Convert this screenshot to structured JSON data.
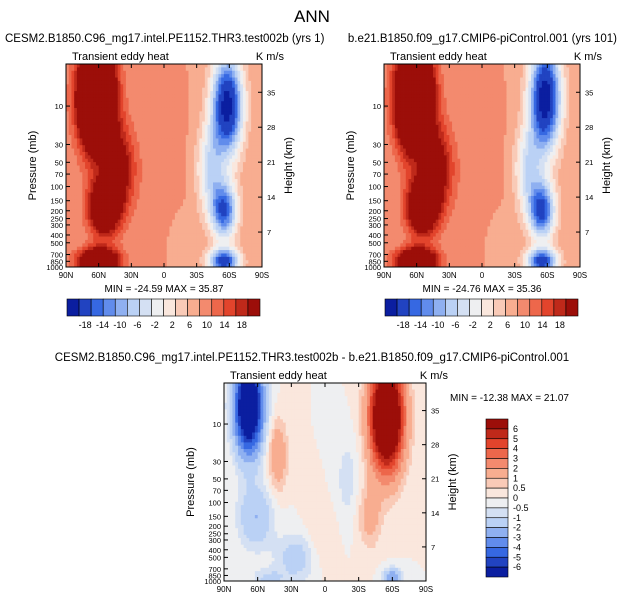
{
  "figure": {
    "title": "ANN",
    "colors": {
      "red_dark": "#8b0000",
      "red": "#e8492f",
      "red_light": "#f8a88a",
      "neutral": "#fbf6f0",
      "blue_light": "#b6cef5",
      "blue": "#3a6ee8",
      "blue_dark": "#000c8f"
    }
  },
  "chart_data": [
    {
      "type": "heatmap",
      "id": "left",
      "case_title": "CESM2.B1850.C96_mg17.intel.PE1152.THR3.test002b (yrs 1)",
      "variable": "Transient eddy heat",
      "units": "K m/s",
      "xlabel": "",
      "ylabel": "Pressure (mb)",
      "ylabel_right": "Height (km)",
      "x_ticks": [
        "90N",
        "60N",
        "30N",
        "0",
        "30S",
        "60S",
        "90S"
      ],
      "x_values": [
        90,
        60,
        30,
        0,
        -30,
        -60,
        -90
      ],
      "pressure_ticks": [
        "10",
        "30",
        "50",
        "70",
        "100",
        "150",
        "200",
        "250",
        "300",
        "400",
        "500",
        "700",
        "850",
        "1000"
      ],
      "pressure_values": [
        10,
        30,
        50,
        70,
        100,
        150,
        200,
        250,
        300,
        400,
        500,
        700,
        850,
        1000
      ],
      "ylim_mb": [
        3,
        1000
      ],
      "height_ticks": [
        "7",
        "14",
        "21",
        "28",
        "35"
      ],
      "height_values": [
        7,
        14,
        21,
        28,
        35
      ],
      "min_max_label": "MIN = -24.59   MAX = 35.87",
      "min": -24.59,
      "max": 35.87,
      "features": [
        {
          "lat": 62,
          "p": 8,
          "value": 35,
          "spread_lat": 16,
          "spread_p": 1.4
        },
        {
          "lat": 55,
          "p": 180,
          "value": 18,
          "spread_lat": 14,
          "spread_p": 0.8
        },
        {
          "lat": 60,
          "p": 850,
          "value": 22,
          "spread_lat": 18,
          "spread_p": 0.35
        },
        {
          "lat": 40,
          "p": 60,
          "value": 10,
          "spread_lat": 14,
          "spread_p": 1.2
        },
        {
          "lat": -58,
          "p": 10,
          "value": -24,
          "spread_lat": 14,
          "spread_p": 1.4
        },
        {
          "lat": -55,
          "p": 200,
          "value": -18,
          "spread_lat": 12,
          "spread_p": 0.8
        },
        {
          "lat": -55,
          "p": 850,
          "value": -20,
          "spread_lat": 14,
          "spread_p": 0.35
        },
        {
          "lat": -42,
          "p": 60,
          "value": -9,
          "spread_lat": 12,
          "spread_p": 1.2
        },
        {
          "lat": 0,
          "p": 100,
          "value": 2,
          "spread_lat": 18,
          "spread_p": 1.8
        },
        {
          "lat": -15,
          "p": 400,
          "value": -2,
          "spread_lat": 14,
          "spread_p": 0.9
        }
      ]
    },
    {
      "type": "heatmap",
      "id": "right",
      "case_title": "b.e21.B1850.f09_g17.CMIP6-piControl.001 (yrs 101)",
      "variable": "Transient eddy heat",
      "units": "K m/s",
      "xlabel": "",
      "ylabel": "Pressure (mb)",
      "ylabel_right": "Height (km)",
      "x_ticks": [
        "90N",
        "60N",
        "30N",
        "0",
        "30S",
        "60S",
        "90S"
      ],
      "x_values": [
        90,
        60,
        30,
        0,
        -30,
        -60,
        -90
      ],
      "pressure_ticks": [
        "10",
        "30",
        "50",
        "70",
        "100",
        "150",
        "200",
        "250",
        "300",
        "400",
        "500",
        "700",
        "850",
        "1000"
      ],
      "pressure_values": [
        10,
        30,
        50,
        70,
        100,
        150,
        200,
        250,
        300,
        400,
        500,
        700,
        850,
        1000
      ],
      "ylim_mb": [
        3,
        1000
      ],
      "height_ticks": [
        "7",
        "14",
        "21",
        "28",
        "35"
      ],
      "height_values": [
        7,
        14,
        21,
        28,
        35
      ],
      "min_max_label": "MIN = -24.76   MAX = 35.36",
      "min": -24.76,
      "max": 35.36,
      "features": [
        {
          "lat": 62,
          "p": 8,
          "value": 34,
          "spread_lat": 16,
          "spread_p": 1.4
        },
        {
          "lat": 55,
          "p": 180,
          "value": 18,
          "spread_lat": 14,
          "spread_p": 0.8
        },
        {
          "lat": 60,
          "p": 850,
          "value": 22,
          "spread_lat": 18,
          "spread_p": 0.35
        },
        {
          "lat": 40,
          "p": 60,
          "value": 10,
          "spread_lat": 14,
          "spread_p": 1.2
        },
        {
          "lat": -58,
          "p": 8,
          "value": -25,
          "spread_lat": 14,
          "spread_p": 1.5
        },
        {
          "lat": -55,
          "p": 200,
          "value": -19,
          "spread_lat": 12,
          "spread_p": 0.8
        },
        {
          "lat": -55,
          "p": 850,
          "value": -20,
          "spread_lat": 14,
          "spread_p": 0.35
        },
        {
          "lat": -42,
          "p": 60,
          "value": -9,
          "spread_lat": 12,
          "spread_p": 1.2
        },
        {
          "lat": 0,
          "p": 100,
          "value": 2,
          "spread_lat": 18,
          "spread_p": 1.8
        },
        {
          "lat": -15,
          "p": 400,
          "value": -2,
          "spread_lat": 14,
          "spread_p": 0.9
        }
      ]
    },
    {
      "type": "heatmap",
      "id": "diff",
      "case_title": "CESM2.B1850.C96_mg17.intel.PE1152.THR3.test002b - b.e21.B1850.f09_g17.CMIP6-piControl.001",
      "variable": "Transient eddy heat",
      "units": "K m/s",
      "xlabel": "",
      "ylabel": "Pressure (mb)",
      "ylabel_right": "Height (km)",
      "x_ticks": [
        "90N",
        "60N",
        "30N",
        "0",
        "30S",
        "60S",
        "90S"
      ],
      "x_values": [
        90,
        60,
        30,
        0,
        -30,
        -60,
        -90
      ],
      "pressure_ticks": [
        "10",
        "30",
        "50",
        "70",
        "100",
        "150",
        "200",
        "250",
        "300",
        "400",
        "500",
        "700",
        "850",
        "1000"
      ],
      "pressure_values": [
        10,
        30,
        50,
        70,
        100,
        150,
        200,
        250,
        300,
        400,
        500,
        700,
        850,
        1000
      ],
      "ylim_mb": [
        3,
        1000
      ],
      "height_ticks": [
        "7",
        "14",
        "21",
        "28",
        "35"
      ],
      "height_values": [
        7,
        14,
        21,
        28,
        35
      ],
      "min_max_label": "MIN = -12.38   MAX = 21.07",
      "min": -12.38,
      "max": 21.07,
      "features": [
        {
          "lat": 68,
          "p": 6,
          "value": -10,
          "spread_lat": 12,
          "spread_p": 1.3
        },
        {
          "lat": 42,
          "p": 25,
          "value": 2,
          "spread_lat": 8,
          "spread_p": 1.0
        },
        {
          "lat": 62,
          "p": 150,
          "value": -2,
          "spread_lat": 15,
          "spread_p": 0.9
        },
        {
          "lat": 25,
          "p": 500,
          "value": -1.5,
          "spread_lat": 18,
          "spread_p": 0.7
        },
        {
          "lat": -55,
          "p": 8,
          "value": 12,
          "spread_lat": 14,
          "spread_p": 1.5
        },
        {
          "lat": -40,
          "p": 150,
          "value": 1.5,
          "spread_lat": 10,
          "spread_p": 0.9
        },
        {
          "lat": -20,
          "p": 50,
          "value": -0.8,
          "spread_lat": 10,
          "spread_p": 1.2
        },
        {
          "lat": 5,
          "p": 300,
          "value": 0.6,
          "spread_lat": 14,
          "spread_p": 1.0
        },
        {
          "lat": -60,
          "p": 900,
          "value": -3,
          "spread_lat": 8,
          "spread_p": 0.25
        },
        {
          "lat": 50,
          "p": 950,
          "value": -1.2,
          "spread_lat": 14,
          "spread_p": 0.3
        }
      ]
    }
  ],
  "colorbars": {
    "horizontal": {
      "levels": [
        "-18",
        "-14",
        "-10",
        "-6",
        "-2",
        "2",
        "6",
        "10",
        "14",
        "18"
      ],
      "level_values": [
        -18,
        -14,
        -10,
        -6,
        -2,
        2,
        6,
        10,
        14,
        18
      ],
      "boxes": 16
    },
    "vertical": {
      "levels": [
        "6",
        "5",
        "4",
        "3",
        "2",
        "1",
        "0.5",
        "0",
        "-0.5",
        "-1",
        "-2",
        "-3",
        "-4",
        "-5",
        "-6"
      ],
      "level_values": [
        6,
        5,
        4,
        3,
        2,
        1,
        0.5,
        0,
        -0.5,
        -1,
        -2,
        -3,
        -4,
        -5,
        -6
      ],
      "boxes": 16
    }
  }
}
